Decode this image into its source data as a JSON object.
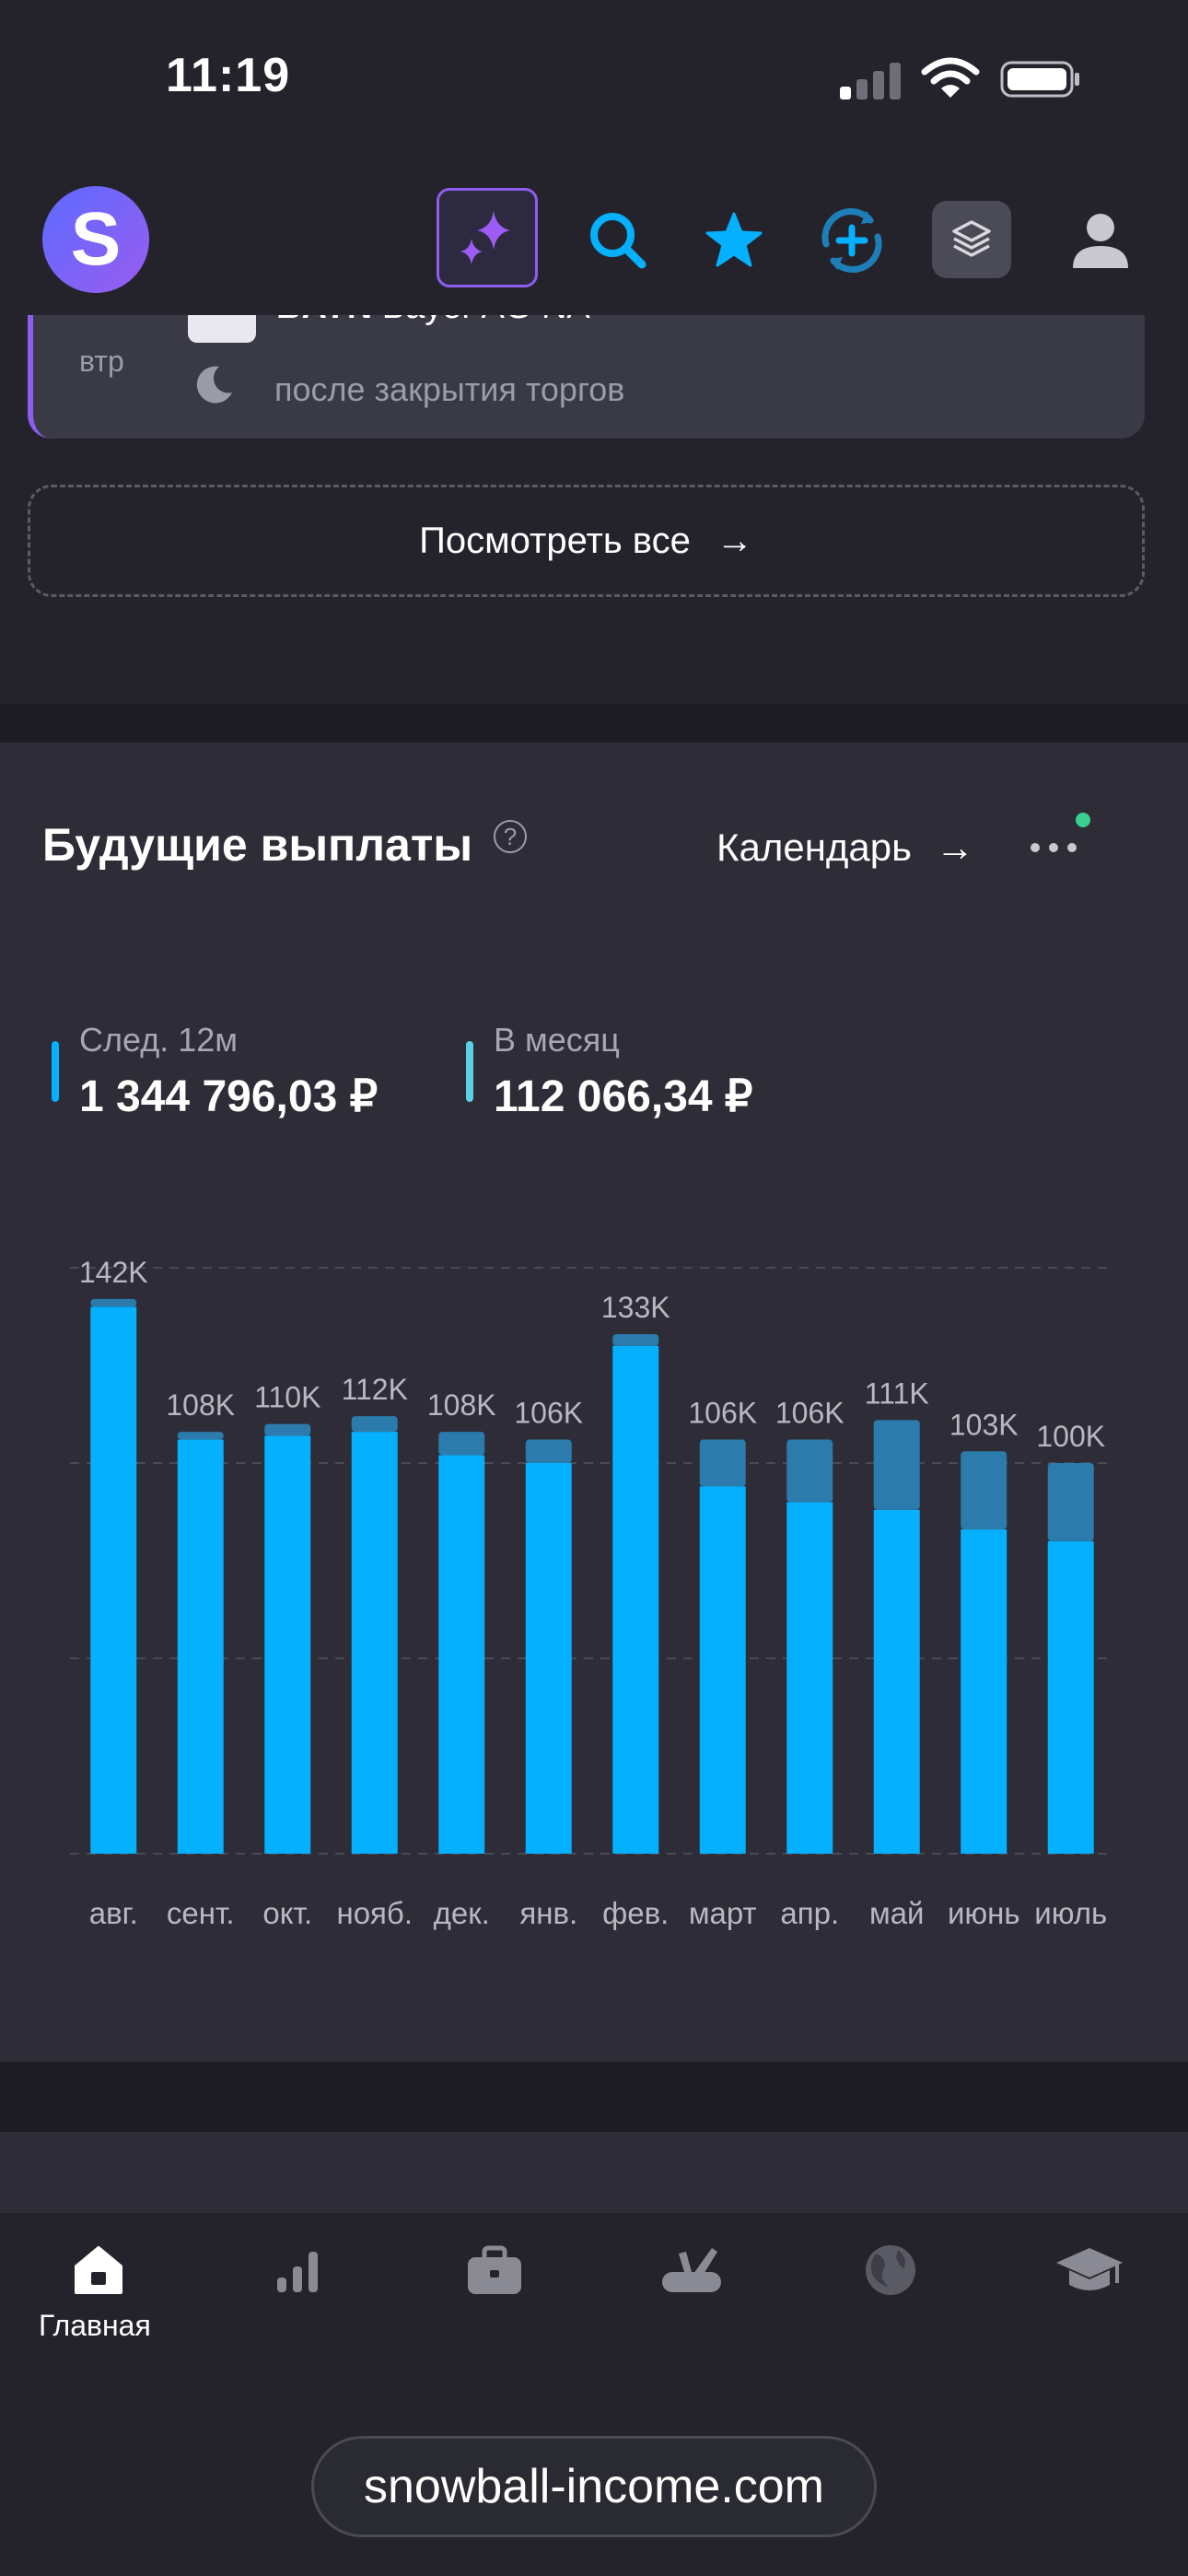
{
  "status_bar": {
    "time": "11:19"
  },
  "header": {
    "logo_letter": "S",
    "icons": [
      "sparkles-icon",
      "search-icon",
      "star-icon",
      "sync-add-icon",
      "layers-icon",
      "profile-icon"
    ]
  },
  "event_card": {
    "day": "втр",
    "ticker": "BAYN",
    "company": "Bayer AG NA",
    "time_text": "после закрытия торгов"
  },
  "view_all": {
    "label": "Посмотреть все",
    "arrow": "→"
  },
  "payments": {
    "title": "Будущие выплаты",
    "help": "?",
    "calendar_label": "Календарь",
    "calendar_arrow": "→",
    "stats": [
      {
        "label": "След. 12м",
        "value": "1 344 796,03 ₽",
        "color": "#05b0ff"
      },
      {
        "label": "В месяц",
        "value": "112 066,34 ₽",
        "color": "#5bd0e6"
      }
    ]
  },
  "chart_data": {
    "type": "bar",
    "stacked": true,
    "categories": [
      "авг.",
      "сент.",
      "окт.",
      "нояб.",
      "дек.",
      "янв.",
      "фев.",
      "март",
      "апр.",
      "май",
      "июнь",
      "июль"
    ],
    "labels": [
      "142K",
      "108K",
      "110K",
      "112K",
      "108K",
      "106K",
      "133K",
      "106K",
      "106K",
      "111K",
      "103K",
      "100K"
    ],
    "series": [
      {
        "values": [
          140,
          106,
          107,
          108,
          102,
          100,
          130,
          94,
          90,
          88,
          83,
          80
        ],
        "color": "#05b0ff"
      },
      {
        "values": [
          2,
          2,
          3,
          4,
          6,
          6,
          3,
          12,
          16,
          23,
          20,
          20
        ],
        "color": "#2b7cad"
      }
    ],
    "ylim": [
      0,
      150
    ],
    "grid": true
  },
  "bottom_nav": {
    "items": [
      {
        "label": "Главная",
        "icon": "home-icon",
        "active": true
      },
      {
        "icon": "analytics-icon"
      },
      {
        "icon": "portfolio-icon"
      },
      {
        "icon": "tools-icon"
      },
      {
        "icon": "globe-icon"
      },
      {
        "icon": "education-icon"
      }
    ]
  },
  "footer": {
    "site": "snowball-income.com"
  }
}
